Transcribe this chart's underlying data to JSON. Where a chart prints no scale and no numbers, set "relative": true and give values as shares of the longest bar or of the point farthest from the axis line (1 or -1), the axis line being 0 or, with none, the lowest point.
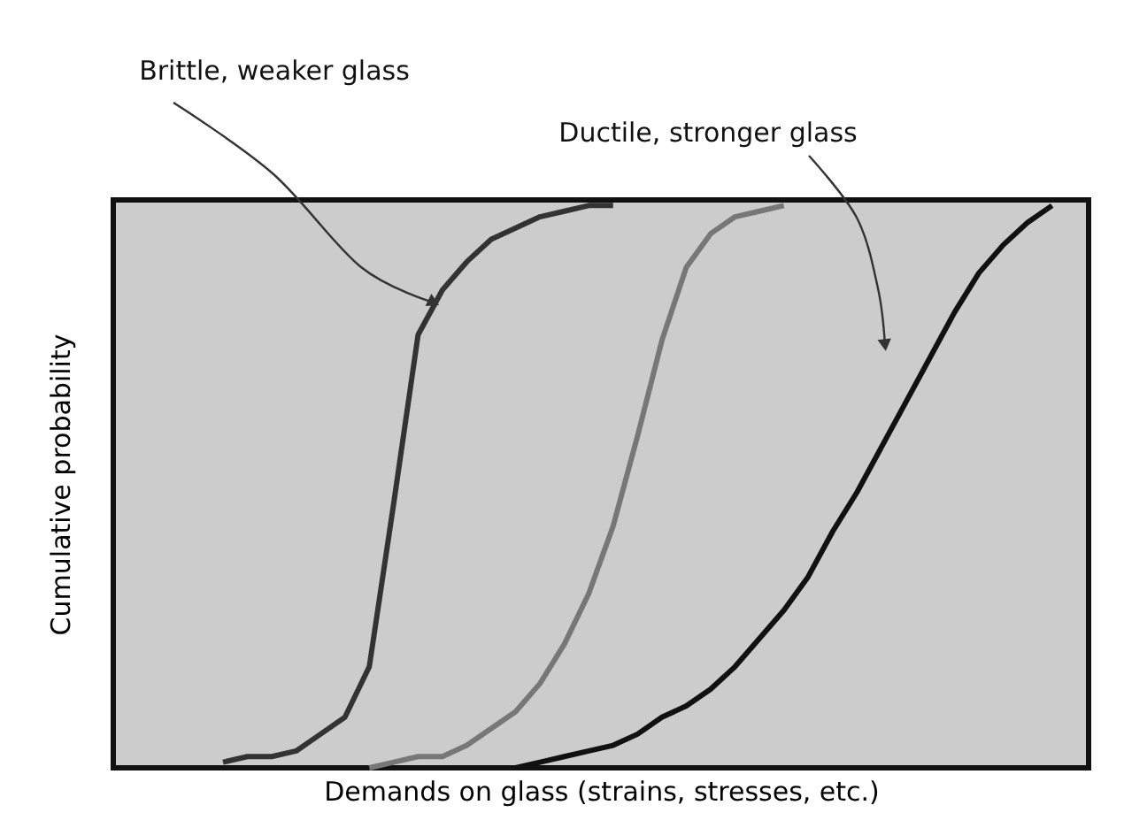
{
  "chart_data": {
    "type": "line",
    "relative": true,
    "xlabel": "Demands on glass (strains, stresses, etc.)",
    "ylabel": "Cumulative probability",
    "tick_labels": false,
    "grid": false,
    "marker": "none",
    "line_style": "solid",
    "annotations": [
      "Brittle, weaker glass",
      "Ductile, stronger glass"
    ],
    "categories": [
      null,
      null,
      null,
      null,
      null,
      null,
      null,
      null,
      null,
      null,
      null,
      null,
      null,
      null,
      null,
      null,
      null,
      null,
      null,
      null,
      null,
      null,
      null,
      null,
      null,
      null,
      null,
      null,
      null,
      null,
      null,
      null,
      null,
      null,
      null,
      null,
      null,
      null,
      null,
      null
    ],
    "series": [
      {
        "color": "#333333",
        "values": [
          null,
          null,
          null,
          null,
          0.01,
          0.02,
          0.02,
          0.03,
          0.06,
          0.09,
          0.18,
          0.47,
          0.77,
          0.85,
          0.9,
          0.94,
          0.96,
          0.98,
          0.99,
          1.0,
          1.0,
          null,
          null,
          null,
          null,
          null,
          null,
          null,
          null,
          null,
          null,
          null,
          null,
          null,
          null,
          null,
          null,
          null,
          null,
          null
        ]
      },
      {
        "color": "#777777",
        "values": [
          null,
          null,
          null,
          null,
          null,
          null,
          null,
          null,
          null,
          null,
          0,
          0.01,
          0.02,
          0.02,
          0.04,
          0.07,
          0.1,
          0.15,
          0.22,
          0.31,
          0.43,
          0.59,
          0.76,
          0.89,
          0.95,
          0.98,
          0.99,
          1.0,
          null,
          null,
          null,
          null,
          null,
          null,
          null,
          null,
          null,
          null,
          null,
          null
        ]
      },
      {
        "color": "#111111",
        "values": [
          null,
          null,
          null,
          null,
          null,
          null,
          null,
          null,
          null,
          null,
          null,
          null,
          null,
          null,
          null,
          null,
          0,
          0.01,
          0.02,
          0.03,
          0.04,
          0.06,
          0.09,
          0.11,
          0.14,
          0.18,
          0.23,
          0.28,
          0.34,
          0.42,
          0.49,
          0.57,
          0.65,
          0.73,
          0.81,
          0.88,
          0.93,
          0.97,
          1.0,
          null
        ]
      }
    ]
  }
}
